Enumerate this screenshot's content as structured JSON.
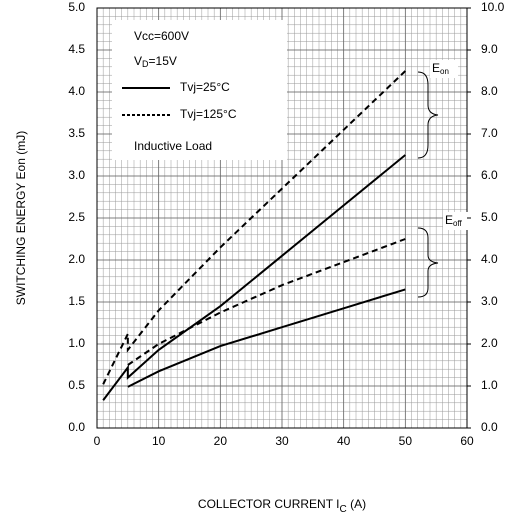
{
  "chart_data": {
    "type": "line",
    "y_label": "SWITCHING ENERGY Eon (mJ)",
    "x_label": {
      "main": "COLLECTOR CURRENT I",
      "sub": "C",
      "rest": " (A)"
    },
    "legend_notes": [
      "Vcc=600V",
      {
        "main": "V",
        "sub": "D",
        "rest": "=15V"
      },
      "Inductive Load"
    ],
    "legend_entries": [
      "Tvj=25°C",
      "Tvj=125°C"
    ],
    "annotations": [
      {
        "main": "E",
        "sub": "on"
      },
      {
        "main": "E",
        "sub": "off"
      }
    ],
    "series": [
      {
        "name": "Tvj=125°C",
        "group": "on",
        "color": "#000000",
        "dash": true,
        "x": [
          1,
          5,
          5,
          10,
          20,
          30,
          40,
          50
        ],
        "values": [
          0.52,
          1.12,
          0.93,
          1.4,
          2.15,
          2.85,
          3.55,
          4.25
        ]
      },
      {
        "name": "Tvj=25°C",
        "group": "on",
        "color": "#000000",
        "dash": false,
        "x": [
          1,
          5,
          5,
          10,
          20,
          30,
          40,
          50
        ],
        "values": [
          0.33,
          0.72,
          0.6,
          0.93,
          1.45,
          2.05,
          2.65,
          3.25
        ]
      },
      {
        "name": "Tvj=125°C",
        "group": "off",
        "axis": "y2",
        "color": "#000000",
        "dash": true,
        "x": [
          5,
          10,
          20,
          30,
          40,
          50
        ],
        "values": [
          1.5,
          2.0,
          2.75,
          3.4,
          3.95,
          4.5
        ]
      },
      {
        "name": "Tvj=25°C",
        "group": "off",
        "axis": "y2",
        "color": "#000000",
        "dash": false,
        "x": [
          5,
          10,
          20,
          30,
          40,
          50
        ],
        "values": [
          0.98,
          1.35,
          1.95,
          2.4,
          2.85,
          3.3
        ]
      }
    ],
    "xlim": [
      0,
      60
    ],
    "xticks": [
      0,
      10,
      20,
      30,
      40,
      50,
      60
    ],
    "ylim": [
      0,
      5
    ],
    "yticks": [
      {
        "value": 0,
        "label": "0.0"
      },
      0.5,
      {
        "value": 1,
        "label": "1.0"
      },
      1.5,
      {
        "value": 2,
        "label": "2.0"
      },
      2.5,
      {
        "value": 3,
        "label": "3.0"
      },
      3.5,
      {
        "value": 4,
        "label": "4.0"
      },
      4.5,
      {
        "value": 5,
        "label": "5.0"
      }
    ],
    "y2lim": [
      0,
      10
    ],
    "y2ticks": [
      {
        "value": 0,
        "label": "0.0"
      },
      {
        "value": 1,
        "label": "1.0"
      },
      {
        "value": 2,
        "label": "2.0"
      },
      {
        "value": 3,
        "label": "3.0"
      },
      {
        "value": 4,
        "label": "4.0"
      },
      {
        "value": 5,
        "label": "5.0"
      },
      {
        "value": 6,
        "label": "6.0"
      },
      {
        "value": 7,
        "label": "7.0"
      },
      {
        "value": 8,
        "label": "8.0"
      },
      {
        "value": 9,
        "label": "9.0"
      },
      {
        "value": 10,
        "label": "10.0"
      }
    ],
    "grid": true,
    "minor_grid_x": 1,
    "minor_grid_y": 0.1
  }
}
